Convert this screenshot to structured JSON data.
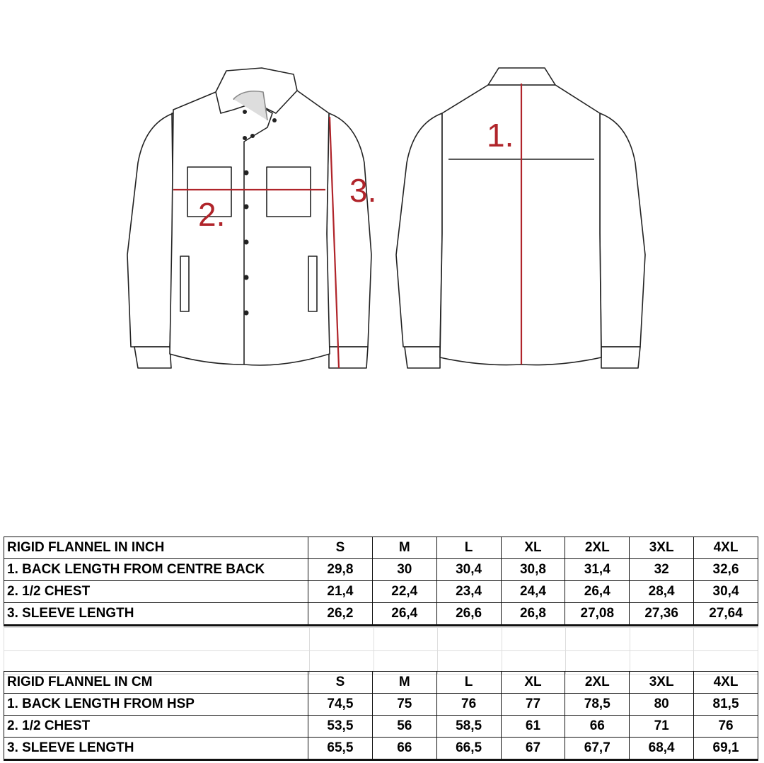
{
  "diagram": {
    "measure_color": "#b0242a",
    "labels": {
      "back_length": "1.",
      "half_chest": "2.",
      "sleeve": "3."
    }
  },
  "inch_table": {
    "header": [
      "RIGID FLANNEL IN INCH",
      "S",
      "M",
      "L",
      "XL",
      "2XL",
      "3XL",
      "4XL"
    ],
    "rows": [
      [
        "1. BACK LENGTH FROM CENTRE BACK",
        "29,8",
        "30",
        "30,4",
        "30,8",
        "31,4",
        "32",
        "32,6"
      ],
      [
        "2. 1/2 CHEST",
        "21,4",
        "22,4",
        "23,4",
        "24,4",
        "26,4",
        "28,4",
        "30,4"
      ],
      [
        "3. SLEEVE LENGTH",
        "26,2",
        "26,4",
        "26,6",
        "26,8",
        "27,08",
        "27,36",
        "27,64"
      ]
    ]
  },
  "cm_table": {
    "header": [
      "RIGID FLANNEL IN CM",
      "S",
      "M",
      "L",
      "XL",
      "2XL",
      "3XL",
      "4XL"
    ],
    "rows": [
      [
        "1. BACK LENGTH FROM HSP",
        "74,5",
        "75",
        "76",
        "77",
        "78,5",
        "80",
        "81,5"
      ],
      [
        "2. 1/2 CHEST",
        "53,5",
        "56",
        "58,5",
        "61",
        "66",
        "71",
        "76"
      ],
      [
        "3. SLEEVE LENGTH",
        "65,5",
        "66",
        "66,5",
        "67",
        "67,7",
        "68,4",
        "69,1"
      ]
    ]
  }
}
